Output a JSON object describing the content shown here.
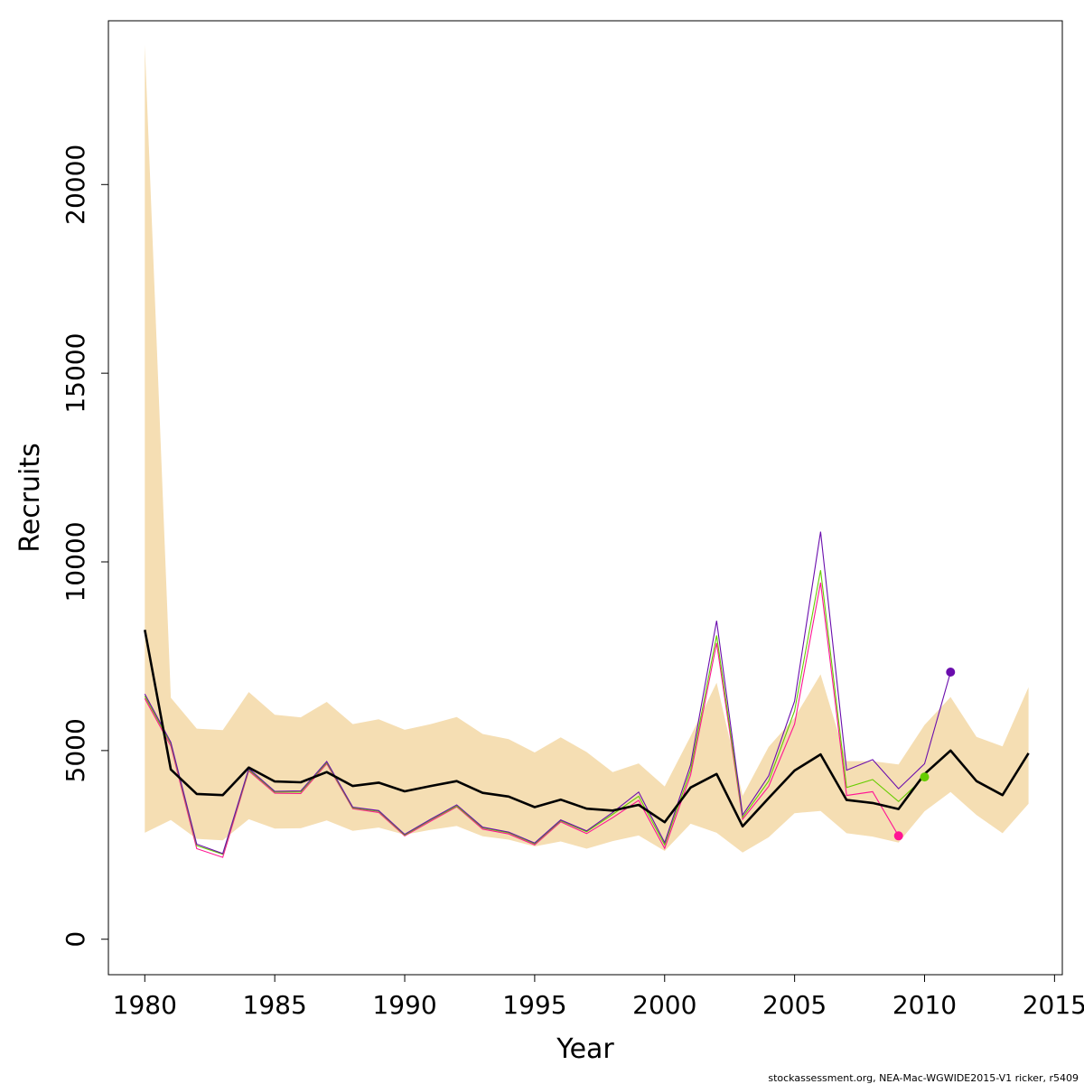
{
  "footnote": "stockassessment.org, NEA-Mac-WGWIDE2015-V1 ricker, r5409",
  "chart_data": {
    "type": "line",
    "title": "",
    "xlabel": "Year",
    "ylabel": "Recruits",
    "xlim": [
      1978.6,
      2015.3
    ],
    "ylim": [
      -940,
      24340
    ],
    "x_ticks": [
      1980,
      1985,
      1990,
      1995,
      2000,
      2005,
      2010,
      2015
    ],
    "y_ticks": [
      0,
      5000,
      10000,
      15000,
      20000
    ],
    "x_tick_labels": [
      "1980",
      "1985",
      "1990",
      "1995",
      "2000",
      "2005",
      "2010",
      "2015"
    ],
    "y_tick_labels": [
      "0",
      "5000",
      "10000",
      "15000",
      "20000"
    ],
    "grid": false,
    "legend": "none",
    "colors": {
      "band": "#F5DEB3",
      "estimate": "#000000",
      "retro_1": "#FF1493",
      "retro_2": "#66CD00",
      "retro_3": "#6A0DAD"
    },
    "years": [
      1980,
      1981,
      1982,
      1983,
      1984,
      1985,
      1986,
      1987,
      1988,
      1989,
      1990,
      1991,
      1992,
      1993,
      1994,
      1995,
      1996,
      1997,
      1998,
      1999,
      2000,
      2001,
      2002,
      2003,
      2004,
      2005,
      2006,
      2007,
      2008,
      2009,
      2010,
      2011,
      2012,
      2013,
      2014
    ],
    "estimate": [
      8200,
      4500,
      3850,
      3820,
      4550,
      4180,
      4160,
      4430,
      4060,
      4150,
      3920,
      4060,
      4190,
      3880,
      3780,
      3500,
      3700,
      3460,
      3410,
      3560,
      3100,
      4020,
      4380,
      2990,
      3740,
      4470,
      4900,
      3690,
      3610,
      3450,
      4380,
      5000,
      4190,
      3820,
      4930
    ],
    "ci_upper": [
      23700,
      6400,
      5580,
      5540,
      6550,
      5950,
      5880,
      6290,
      5700,
      5830,
      5550,
      5700,
      5890,
      5440,
      5300,
      4950,
      5350,
      4960,
      4430,
      4660,
      4050,
      5380,
      6800,
      3800,
      5100,
      5870,
      7020,
      4720,
      4720,
      4630,
      5680,
      6420,
      5360,
      5110,
      6680
    ],
    "ci_lower": [
      2820,
      3160,
      2660,
      2620,
      3180,
      2930,
      2940,
      3150,
      2870,
      2960,
      2770,
      2900,
      3000,
      2730,
      2640,
      2460,
      2590,
      2400,
      2600,
      2750,
      2340,
      3060,
      2820,
      2300,
      2700,
      3340,
      3400,
      2810,
      2720,
      2560,
      3390,
      3900,
      3290,
      2810,
      3590
    ],
    "series": [
      {
        "years": [
          1980,
          1981,
          1982,
          1983,
          1984,
          1985,
          1986,
          1987,
          1988,
          1989,
          1990,
          1991,
          1992,
          1993,
          1994,
          1995,
          1996,
          1997,
          1998,
          1999,
          2000,
          2001,
          2002,
          2003,
          2004,
          2005,
          2006,
          2007,
          2008,
          2009
        ],
        "values": [
          6380,
          5120,
          2400,
          2170,
          4460,
          3870,
          3860,
          4650,
          3460,
          3360,
          2740,
          3130,
          3510,
          2920,
          2790,
          2500,
          3110,
          2800,
          3220,
          3680,
          2410,
          4350,
          7850,
          3180,
          4050,
          5700,
          9450,
          3810,
          3910,
          2740
        ],
        "color": "#FF1493"
      },
      {
        "years": [
          1980,
          1981,
          1982,
          1983,
          1984,
          1985,
          1986,
          1987,
          1988,
          1989,
          1990,
          1991,
          1992,
          1993,
          1994,
          1995,
          1996,
          1997,
          1998,
          1999,
          2000,
          2001,
          2002,
          2003,
          2004,
          2005,
          2006,
          2007,
          2008,
          2009,
          2010
        ],
        "values": [
          6440,
          5180,
          2480,
          2250,
          4490,
          3900,
          3900,
          4680,
          3480,
          3390,
          2760,
          3160,
          3530,
          2950,
          2820,
          2530,
          3140,
          2850,
          3310,
          3790,
          2500,
          4480,
          8050,
          3230,
          4190,
          6050,
          9780,
          4020,
          4230,
          3650,
          4300
        ],
        "color": "#66CD00"
      },
      {
        "years": [
          1980,
          1981,
          1982,
          1983,
          1984,
          1985,
          1986,
          1987,
          1988,
          1989,
          1990,
          1991,
          1992,
          1993,
          1994,
          1995,
          1996,
          1997,
          1998,
          1999,
          2000,
          2001,
          2002,
          2003,
          2004,
          2005,
          2006,
          2007,
          2008,
          2009,
          2010,
          2011
        ],
        "values": [
          6500,
          5220,
          2520,
          2270,
          4520,
          3920,
          3930,
          4710,
          3500,
          3410,
          2780,
          3180,
          3560,
          2970,
          2840,
          2550,
          3160,
          2870,
          3360,
          3900,
          2560,
          4620,
          8440,
          3290,
          4330,
          6310,
          10800,
          4480,
          4760,
          3990,
          4650,
          7080
        ],
        "color": "#6A0DAD"
      }
    ]
  }
}
